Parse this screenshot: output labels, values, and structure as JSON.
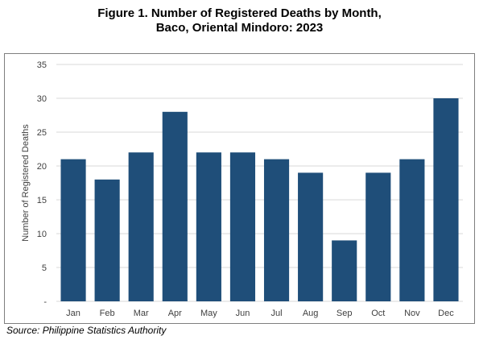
{
  "title": {
    "line1": "Figure 1. Number of Registered Deaths by Month,",
    "line2": "Baco, Oriental Mindoro: 2023"
  },
  "source": "Source: Philippine Statistics Authority",
  "colors": {
    "bar": "#1f4e79",
    "grid": "#d9d9d9",
    "axis_text": "#404040"
  },
  "chart_data": {
    "type": "bar",
    "title": "Figure 1. Number of Registered Deaths by Month, Baco, Oriental Mindoro: 2023",
    "xlabel": "",
    "ylabel": "Number of Registered Deaths",
    "categories": [
      "Jan",
      "Feb",
      "Mar",
      "Apr",
      "May",
      "Jun",
      "Jul",
      "Aug",
      "Sep",
      "Oct",
      "Nov",
      "Dec"
    ],
    "values": [
      21,
      18,
      22,
      28,
      22,
      22,
      21,
      19,
      9,
      19,
      21,
      30
    ],
    "ylim": [
      0,
      35
    ],
    "yticks": [
      0,
      5,
      10,
      15,
      20,
      25,
      30,
      35
    ],
    "ytick_labels": [
      "-",
      "5",
      "10",
      "15",
      "20",
      "25",
      "30",
      "35"
    ],
    "grid": true,
    "legend": "none"
  }
}
